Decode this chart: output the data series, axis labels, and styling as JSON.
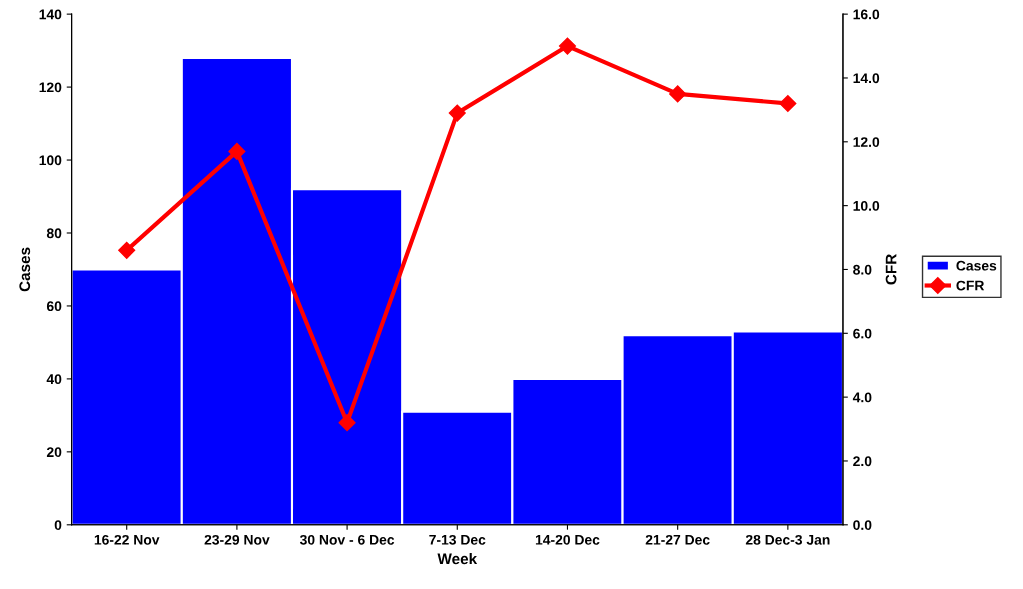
{
  "chart_data": {
    "type": "bar",
    "xlabel": "Week",
    "ylabel": "Cases",
    "y2label": "CFR",
    "categories": [
      "16-22 Nov",
      "23-29 Nov",
      "30 Nov - 6 Dec",
      "7-13 Dec",
      "14-20 Dec",
      "21-27 Dec",
      "28 Dec-3 Jan"
    ],
    "series": [
      {
        "name": "Cases",
        "color": "#0000ff",
        "values": [
          70,
          128,
          92,
          31,
          40,
          52,
          53
        ]
      },
      {
        "name": "CFR",
        "type": "line",
        "axis": "y2",
        "color": "#ff0000",
        "marker": "diamond",
        "values": [
          8.6,
          11.7,
          3.2,
          12.9,
          15.0,
          13.5,
          13.2
        ]
      }
    ],
    "ylim": [
      0,
      140
    ],
    "yticks": [
      0,
      20,
      40,
      60,
      80,
      100,
      120,
      140
    ],
    "y2lim": [
      0,
      16
    ],
    "y2ticks": [
      {
        "value": 0,
        "label": "0.0"
      },
      {
        "value": 2,
        "label": "2.0"
      },
      {
        "value": 4,
        "label": "4.0"
      },
      {
        "value": 6,
        "label": "6.0"
      },
      {
        "value": 8,
        "label": "8.0"
      },
      {
        "value": 10,
        "label": "10.0"
      },
      {
        "value": 12,
        "label": "12.0"
      },
      {
        "value": 14,
        "label": "14.0"
      },
      {
        "value": 16,
        "label": "16.0"
      }
    ],
    "legend": "right",
    "grid": false
  }
}
